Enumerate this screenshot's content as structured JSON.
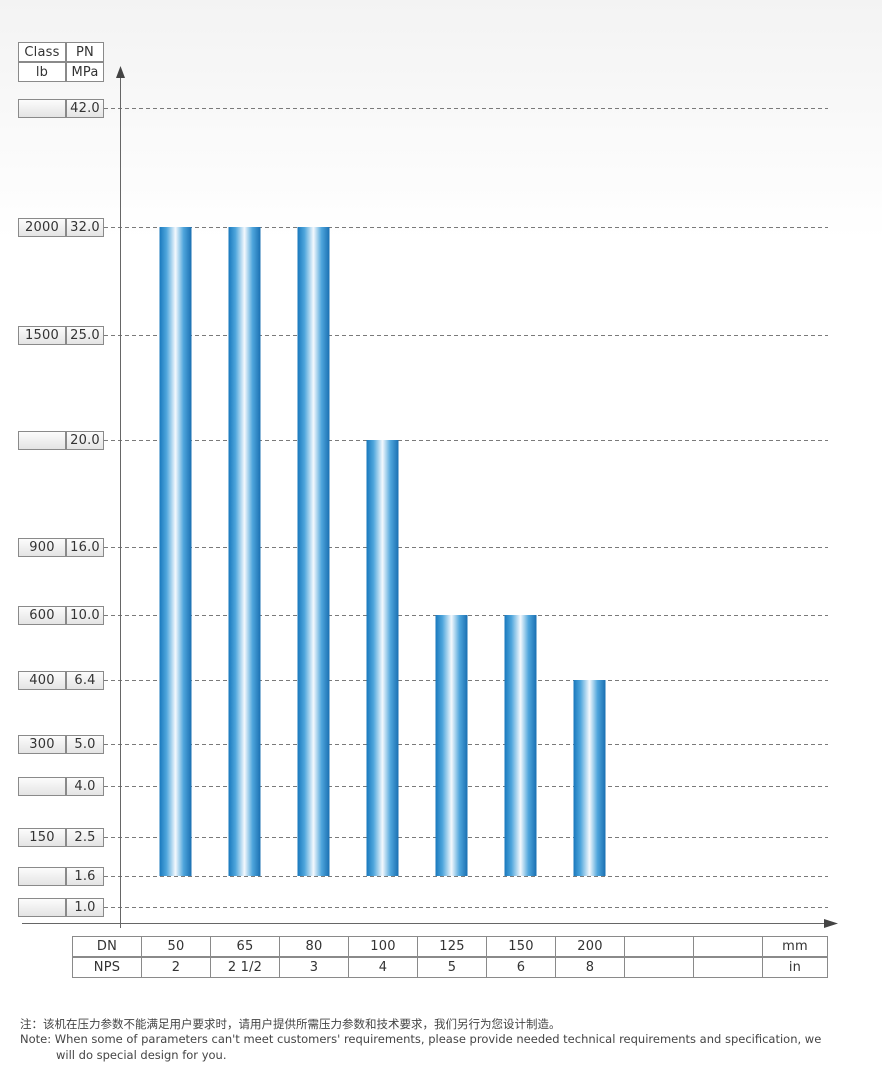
{
  "header": {
    "class_label": "Class",
    "pn_label": "PN",
    "class_unit": "lb",
    "pn_unit": "MPa"
  },
  "chart_data": {
    "type": "bar",
    "categories": [
      "50",
      "65",
      "80",
      "100",
      "125",
      "150",
      "200"
    ],
    "values": [
      32.0,
      32.0,
      32.0,
      20.0,
      10.0,
      10.0,
      6.4
    ],
    "bar_base": 1.6,
    "y_ticks": [
      {
        "pn": "42.0",
        "class": ""
      },
      {
        "pn": "32.0",
        "class": "2000"
      },
      {
        "pn": "25.0",
        "class": "1500"
      },
      {
        "pn": "20.0",
        "class": ""
      },
      {
        "pn": "16.0",
        "class": "900"
      },
      {
        "pn": "10.0",
        "class": "600"
      },
      {
        "pn": "6.4",
        "class": "400"
      },
      {
        "pn": "5.0",
        "class": "300"
      },
      {
        "pn": "4.0",
        "class": ""
      },
      {
        "pn": "2.5",
        "class": "150"
      },
      {
        "pn": "1.6",
        "class": ""
      },
      {
        "pn": "1.0",
        "class": ""
      }
    ],
    "grid": true,
    "x_table": {
      "row1_label": "DN",
      "row2_label": "NPS",
      "dn": [
        "50",
        "65",
        "80",
        "100",
        "125",
        "150",
        "200",
        "",
        ""
      ],
      "nps": [
        "2",
        "2 1/2",
        "3",
        "4",
        "5",
        "6",
        "8",
        "",
        ""
      ],
      "dn_unit": "mm",
      "nps_unit": "in"
    },
    "bar_color": "#1e7fc4"
  },
  "notes": {
    "cn": "注：该机在压力参数不能满足用户要求时，请用户提供所需压力参数和技术要求，我们另行为您设计制造。",
    "en_line1": "Note: When some of parameters can't meet customers' requirements, please provide needed technical requirements and specification, we",
    "en_line2": "will do special design for you."
  }
}
